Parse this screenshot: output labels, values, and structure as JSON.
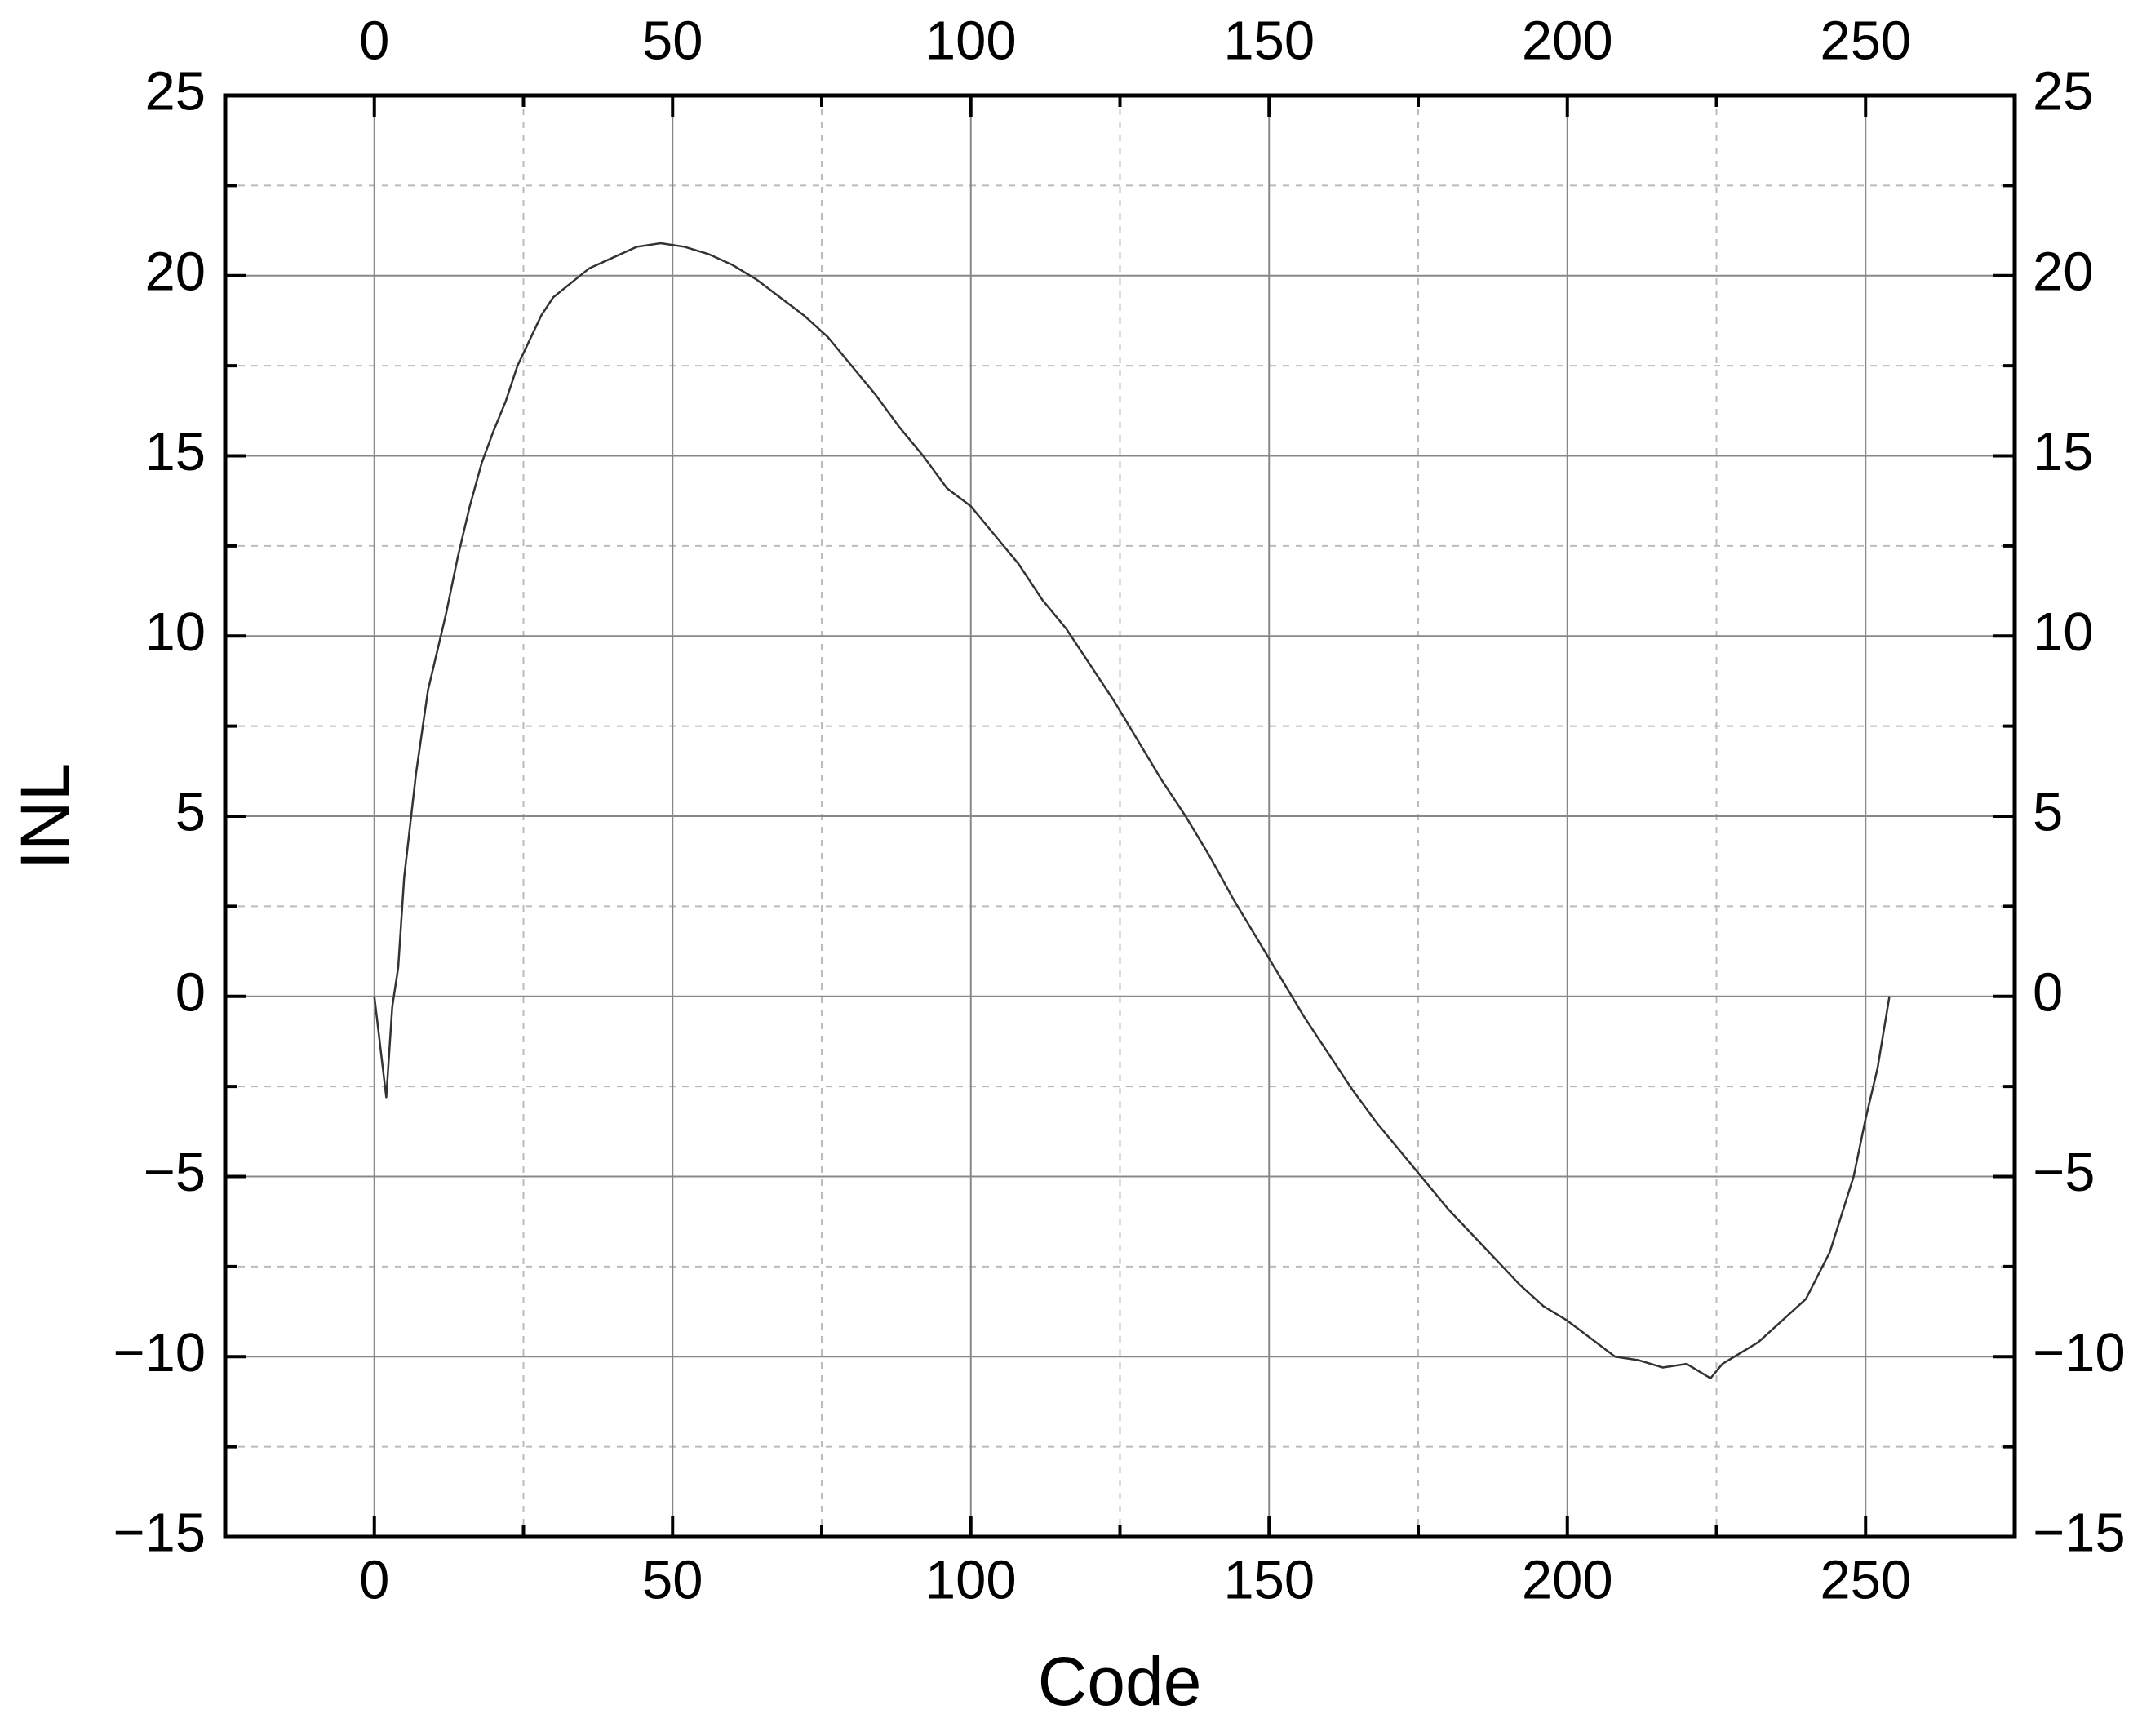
{
  "chart_data": {
    "type": "line",
    "xlabel": "Code",
    "ylabel": "INL",
    "xlim": [
      -25,
      275
    ],
    "xticks": [
      0,
      50,
      100,
      150,
      200,
      250
    ],
    "ylim": [
      -15,
      25
    ],
    "yticks": [
      {
        "value": -15,
        "label": "−15"
      },
      {
        "value": -10,
        "label": "−10"
      },
      {
        "value": -5,
        "label": "−5"
      },
      0,
      5,
      10,
      15,
      20,
      25
    ],
    "grid": true,
    "minor_grid": true,
    "mirror_axes": true,
    "series": [
      {
        "color": "#333333",
        "x": [
          0,
          2,
          3,
          4,
          5,
          7,
          9,
          12,
          14,
          16,
          18,
          20,
          22,
          24,
          26,
          28,
          30,
          33,
          36,
          40,
          44,
          48,
          52,
          56,
          60,
          64,
          68,
          72,
          76,
          80,
          84,
          88,
          92,
          96,
          100,
          104,
          108,
          112,
          116,
          120,
          124,
          128,
          132,
          136,
          140,
          144,
          148,
          152,
          156,
          160,
          164,
          168,
          172,
          176,
          180,
          184,
          188,
          192,
          196,
          200,
          204,
          208,
          212,
          216,
          220,
          224,
          226,
          228,
          232,
          236,
          240,
          244,
          248,
          250,
          252,
          254
        ],
        "values": [
          0,
          -2.8,
          -0.3,
          0.8,
          3.3,
          6.2,
          8.5,
          10.6,
          12.2,
          13.6,
          14.8,
          15.7,
          16.5,
          17.5,
          18.2,
          18.9,
          19.4,
          19.8,
          20.2,
          20.5,
          20.8,
          20.9,
          20.8,
          20.6,
          20.3,
          19.9,
          19.4,
          18.9,
          18.3,
          17.5,
          16.7,
          15.8,
          15.0,
          14.1,
          13.6,
          12.8,
          12.0,
          11.0,
          10.2,
          9.2,
          8.2,
          7.1,
          6.0,
          5.0,
          3.9,
          2.7,
          1.6,
          0.5,
          -0.6,
          -1.6,
          -2.6,
          -3.5,
          -4.3,
          -5.1,
          -5.9,
          -6.6,
          -7.3,
          -8.0,
          -8.6,
          -9.0,
          -9.5,
          -10.0,
          -10.1,
          -10.3,
          -10.2,
          -10.6,
          -10.2,
          -10.0,
          -9.6,
          -9.0,
          -8.4,
          -7.1,
          -5.0,
          -3.4,
          -2.0,
          0
        ]
      }
    ]
  }
}
